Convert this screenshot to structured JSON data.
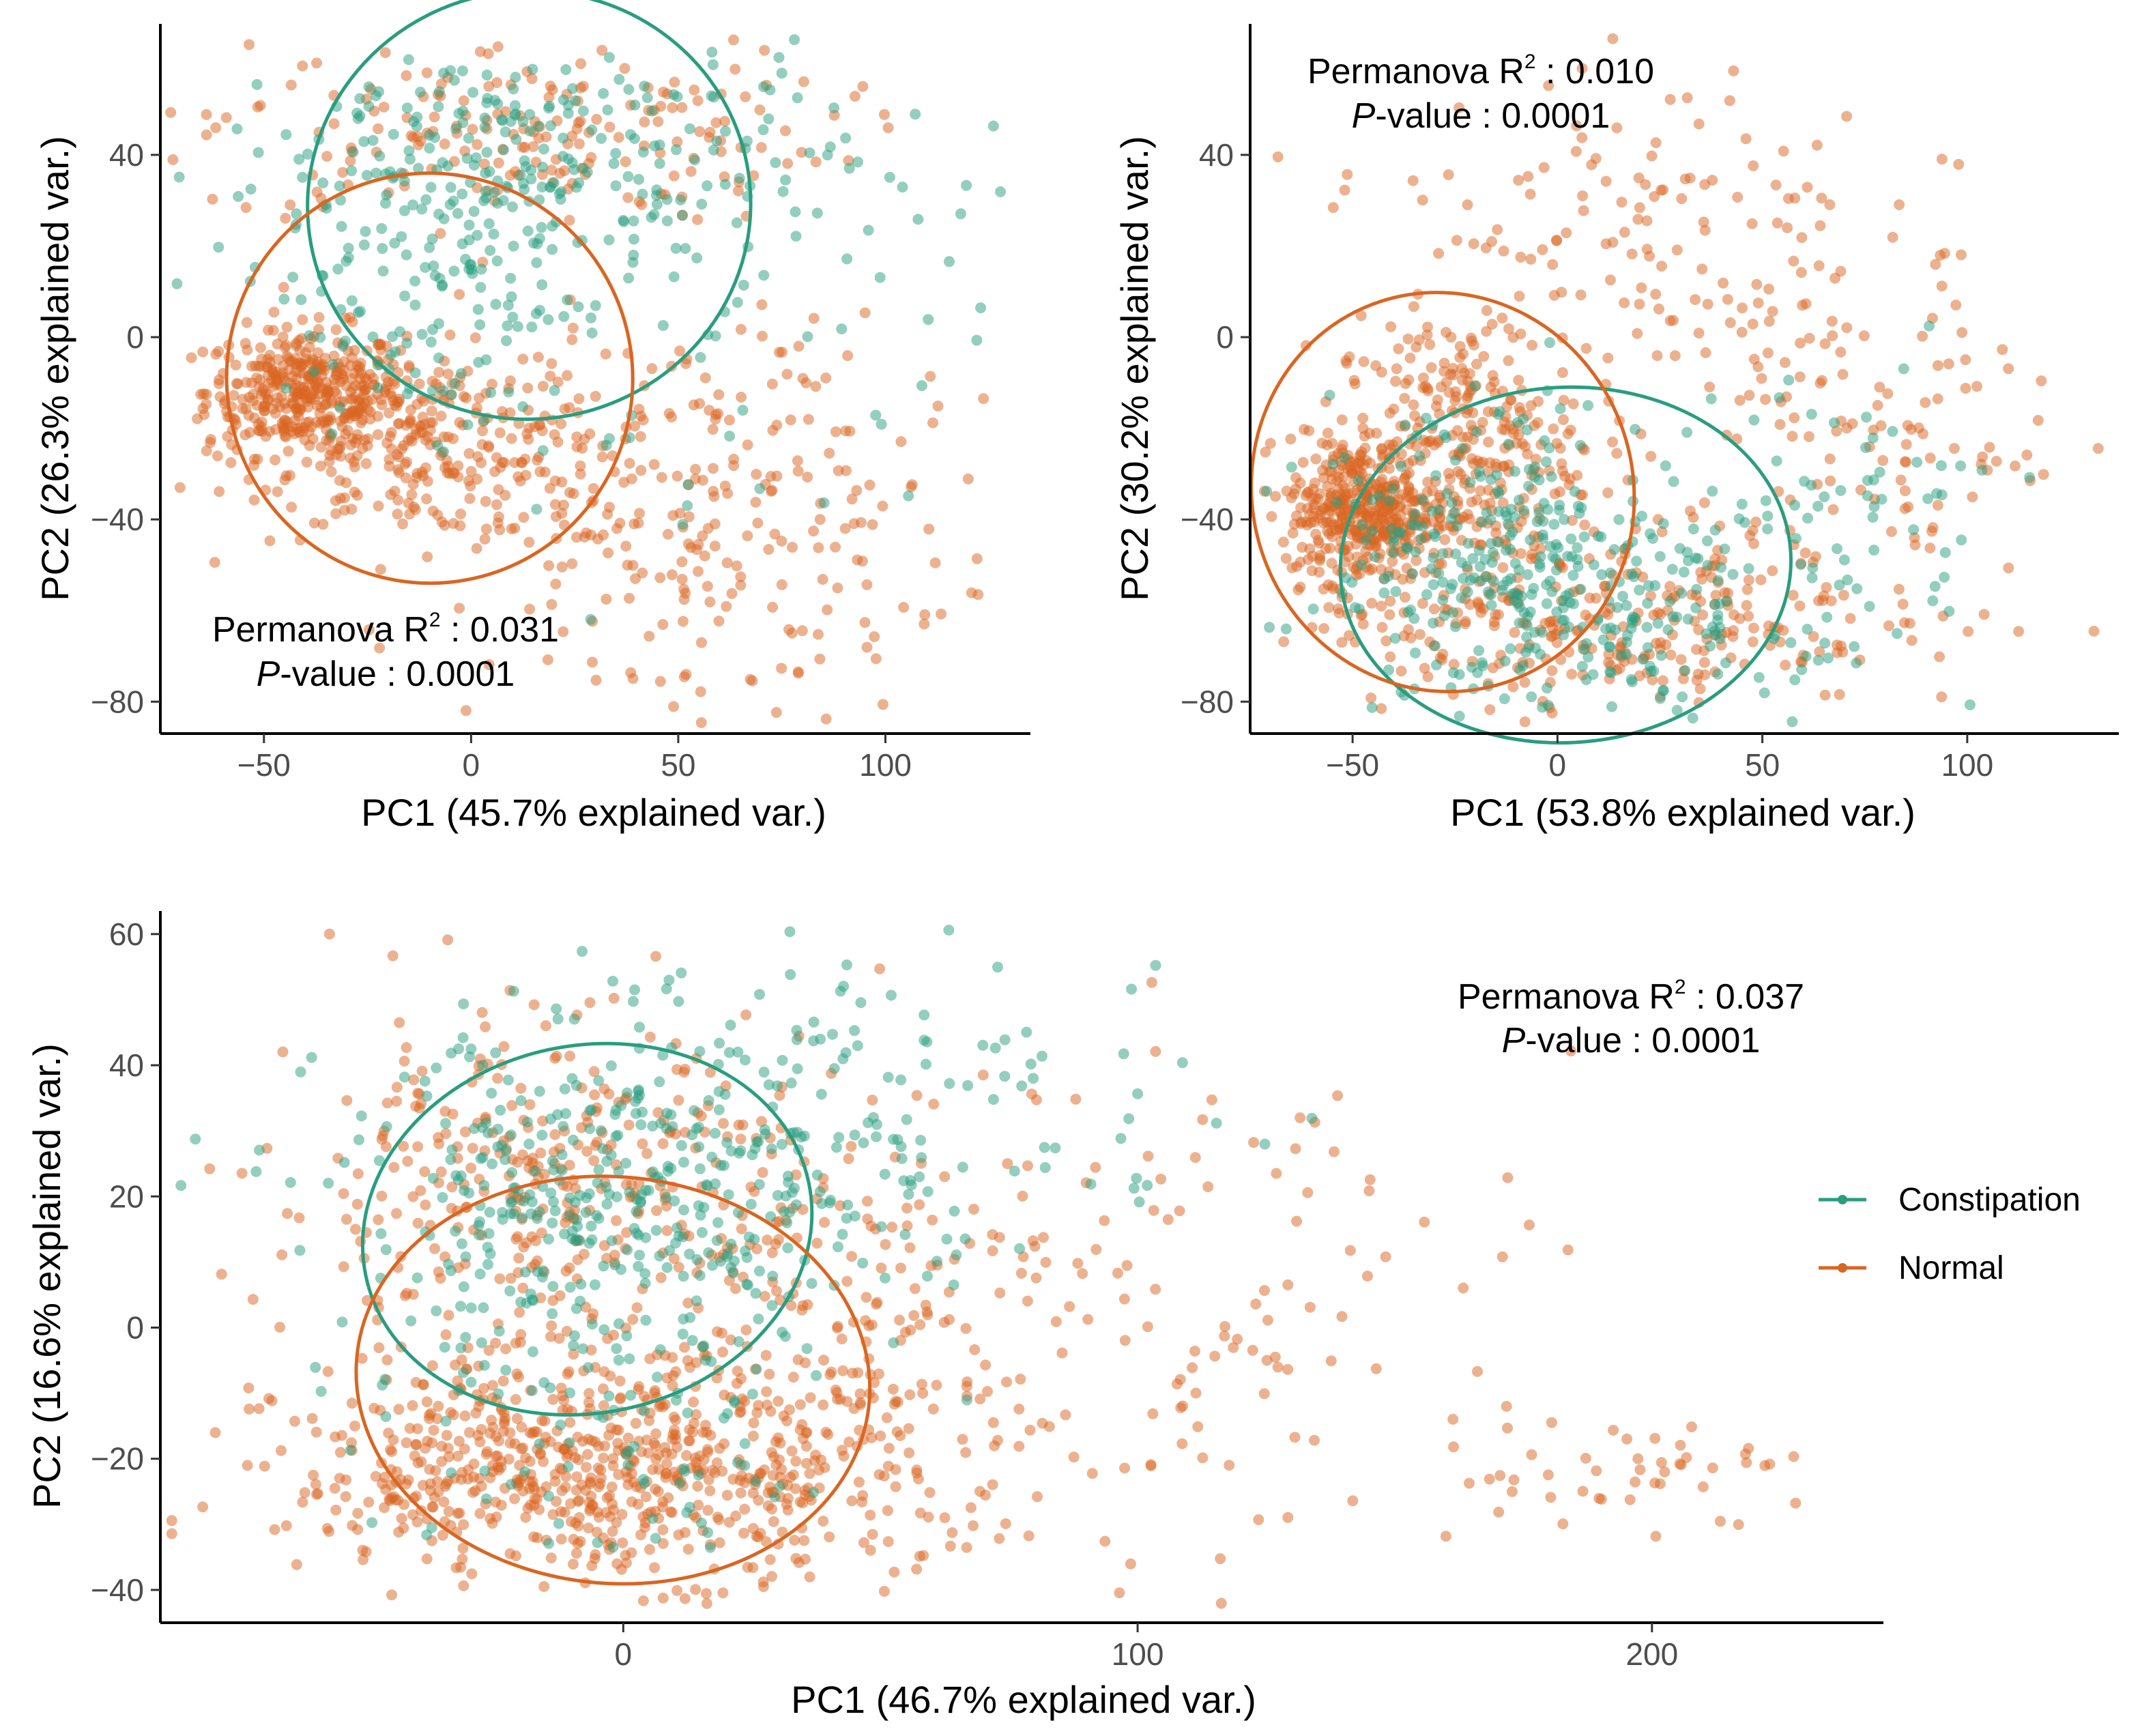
{
  "colors": {
    "constipation": "#2a9d7f",
    "normal": "#d96622"
  },
  "legend": {
    "items": [
      {
        "key": "constipation",
        "label": "Constipation"
      },
      {
        "key": "normal",
        "label": "Normal"
      }
    ]
  },
  "chart_data": [
    {
      "type": "scatter",
      "xlabel": "PC1 (45.7% explained var.)",
      "ylabel": "PC2 (26.3% explained var.)",
      "xlim": [
        -75,
        135
      ],
      "ylim": [
        -87,
        68
      ],
      "xticks": [
        -50,
        0,
        50,
        100
      ],
      "yticks": [
        -80,
        -40,
        0,
        40
      ],
      "annotation": {
        "line1_prefix": "Permanova R",
        "sup": "2",
        "line1_value": " : 0.031",
        "line2_italic": "P",
        "line2_rest": "-value : 0.0001"
      },
      "series": [
        {
          "name": "Constipation",
          "key": "constipation",
          "ellipse": {
            "cx": 14,
            "cy": 29,
            "rx": 107,
            "ry": 47,
            "angle": -6
          },
          "clusters": [
            {
              "cx": 15,
              "cy": 38,
              "sx": 38,
              "sy": 15,
              "n": 260
            },
            {
              "cx": -10,
              "cy": 12,
              "sx": 26,
              "sy": 16,
              "n": 140
            },
            {
              "cx": 70,
              "cy": -10,
              "sx": 28,
              "sy": 28,
              "n": 40
            }
          ]
        },
        {
          "name": "Normal",
          "key": "normal",
          "ellipse": {
            "cx": -10,
            "cy": -9,
            "rx": 98,
            "ry": 45,
            "angle": -8
          },
          "clusters": [
            {
              "cx": -40,
              "cy": -12,
              "sx": 12,
              "sy": 7,
              "n": 380
            },
            {
              "cx": -12,
              "cy": -24,
              "sx": 22,
              "sy": 10,
              "n": 260
            },
            {
              "cx": 10,
              "cy": 45,
              "sx": 38,
              "sy": 10,
              "n": 200
            },
            {
              "cx": 45,
              "cy": -40,
              "sx": 30,
              "sy": 22,
              "n": 220
            },
            {
              "cx": 90,
              "cy": -40,
              "sx": 18,
              "sy": 20,
              "n": 60
            }
          ]
        }
      ]
    },
    {
      "type": "scatter",
      "xlabel": "PC1 (53.8% explained var.)",
      "ylabel": "PC2 (30.2% explained var.)",
      "xlim": [
        -75,
        137
      ],
      "ylim": [
        -87,
        68
      ],
      "xticks": [
        -50,
        0,
        50,
        100
      ],
      "yticks": [
        -80,
        -40,
        0,
        40
      ],
      "annotation": {
        "line1_prefix": "Permanova R",
        "sup": "2",
        "line1_value": " : 0.010",
        "line2_italic": "P",
        "line2_rest": "-value : 0.0001"
      },
      "series": [
        {
          "name": "Constipation",
          "key": "constipation",
          "ellipse": {
            "cx": 2,
            "cy": -50,
            "rx": 110,
            "ry": 39,
            "angle": -3
          },
          "clusters": [
            {
              "cx": 5,
              "cy": -60,
              "sx": 30,
              "sy": 12,
              "n": 260
            },
            {
              "cx": -20,
              "cy": -40,
              "sx": 22,
              "sy": 14,
              "n": 140
            },
            {
              "cx": 70,
              "cy": -40,
              "sx": 20,
              "sy": 18,
              "n": 60
            }
          ]
        },
        {
          "name": "Normal",
          "key": "normal",
          "ellipse": {
            "cx": -28,
            "cy": -34,
            "rx": 93,
            "ry": 44,
            "angle": -18
          },
          "clusters": [
            {
              "cx": -48,
              "cy": -38,
              "sx": 9,
              "sy": 8,
              "n": 380
            },
            {
              "cx": -25,
              "cy": -25,
              "sx": 15,
              "sy": 15,
              "n": 320
            },
            {
              "cx": 10,
              "cy": -62,
              "sx": 35,
              "sy": 10,
              "n": 280
            },
            {
              "cx": 20,
              "cy": 20,
              "sx": 30,
              "sy": 22,
              "n": 160
            },
            {
              "cx": 80,
              "cy": -30,
              "sx": 22,
              "sy": 25,
              "n": 120
            }
          ]
        }
      ]
    },
    {
      "type": "scatter",
      "xlabel": "PC1 (46.7% explained var.)",
      "ylabel": "PC2 (16.6% explained var.)",
      "xlim": [
        -90,
        245
      ],
      "ylim": [
        -45,
        63
      ],
      "xticks": [
        0,
        100,
        200
      ],
      "yticks": [
        -40,
        -20,
        0,
        20,
        40,
        60
      ],
      "annotation": {
        "line1_prefix": "Permanova R",
        "sup": "2",
        "line1_value": " : 0.037",
        "line2_italic": "P",
        "line2_rest": "-value : 0.0001"
      },
      "series": [
        {
          "name": "Constipation",
          "key": "constipation",
          "ellipse": {
            "cx": -7,
            "cy": 15,
            "rx": 88,
            "ry": 28,
            "angle": -12
          },
          "clusters": [
            {
              "cx": 0,
              "cy": 18,
              "sx": 28,
              "sy": 14,
              "n": 420
            },
            {
              "cx": 60,
              "cy": 35,
              "sx": 30,
              "sy": 12,
              "n": 90
            },
            {
              "cx": 0,
              "cy": -22,
              "sx": 25,
              "sy": 8,
              "n": 60
            }
          ]
        },
        {
          "name": "Normal",
          "key": "normal",
          "ellipse": {
            "cx": -2,
            "cy": -8,
            "rx": 100,
            "ry": 31,
            "angle": 5
          },
          "clusters": [
            {
              "cx": -5,
              "cy": -22,
              "sx": 30,
              "sy": 8,
              "n": 650
            },
            {
              "cx": -20,
              "cy": 20,
              "sx": 25,
              "sy": 14,
              "n": 320
            },
            {
              "cx": 40,
              "cy": 0,
              "sx": 30,
              "sy": 20,
              "n": 240
            },
            {
              "cx": 110,
              "cy": 0,
              "sx": 40,
              "sy": 20,
              "n": 140
            },
            {
              "cx": 200,
              "cy": -22,
              "sx": 18,
              "sy": 4,
              "n": 40
            }
          ]
        }
      ]
    }
  ]
}
